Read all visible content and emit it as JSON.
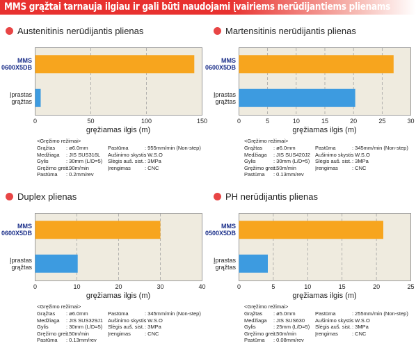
{
  "header": {
    "title": "MMS grąžtai tarnauja ilgiau ir gali būti naudojami įvairiems nerūdijantiems plienams"
  },
  "chart_data": [
    {
      "type": "bar",
      "orientation": "horizontal",
      "title": "Austenitinis nerūdijantis plienas",
      "categories": [
        "MMS 0600X5DB",
        "Įprastas grąžtas"
      ],
      "values": [
        143,
        5
      ],
      "colors": [
        "#f7a51e",
        "#3d9be0"
      ],
      "x_label": "gręžiamas ilgis  (m)",
      "xlim": [
        0,
        150
      ],
      "xticks": [
        0,
        50,
        100,
        150
      ],
      "grid": true,
      "conditions": {
        "title": "<Gręžimo režimai>",
        "left": [
          [
            "Grąžtas",
            ": ø6.0mm"
          ],
          [
            "Medžiaga",
            ": JIS SUS316L"
          ],
          [
            "Gylis",
            ": 30mm (L/D=5)"
          ],
          [
            "Gręžimo greit.",
            ": 90m/min"
          ],
          [
            "Pastūma",
            ": 0.2mm/rev"
          ]
        ],
        "right": [
          [
            "Pastūma",
            ": 955mm/min (Non-step)"
          ],
          [
            "Aušinimo skystis",
            ": W.S.O"
          ],
          [
            "Slėgis auš. sist.",
            ": 3MPa"
          ],
          [
            "Įrengimas",
            ": CNC"
          ]
        ]
      }
    },
    {
      "type": "bar",
      "orientation": "horizontal",
      "title": "Martensitinis nerūdijantis plienas",
      "categories": [
        "MMS 0600X5DB",
        "Įprastas grąžtas"
      ],
      "values": [
        27,
        20.3
      ],
      "colors": [
        "#f7a51e",
        "#3d9be0"
      ],
      "x_label": "gręžiamas ilgis  (m)",
      "xlim": [
        0,
        30
      ],
      "xticks": [
        0,
        5,
        10,
        15,
        20,
        25,
        30
      ],
      "grid": true,
      "conditions": {
        "title": "<Gręžimo režimai>",
        "left": [
          [
            "Grąžtas",
            ": ø6.0mm"
          ],
          [
            "Medžiaga",
            ": JIS SUS420J2"
          ],
          [
            "Gylis",
            ": 30mm (L/D=5)"
          ],
          [
            "Gręžimo greit.",
            ": 50m/min"
          ],
          [
            "Pastūma",
            ": 0.13mm/rev"
          ]
        ],
        "right": [
          [
            "Pastūma",
            ": 345mm/min (Non-step)"
          ],
          [
            "Aušinimo skystis",
            ": W.S.O"
          ],
          [
            "Slėgis auš. sist.",
            ": 3MPa"
          ],
          [
            "Įrengimas",
            ": CNC"
          ]
        ]
      }
    },
    {
      "type": "bar",
      "orientation": "horizontal",
      "title": "Duplex plienas",
      "categories": [
        "MMS 0600X5DB",
        "Įprastas grąžtas"
      ],
      "values": [
        30,
        10.2
      ],
      "colors": [
        "#f7a51e",
        "#3d9be0"
      ],
      "x_label": "gręžiamas ilgis  (m)",
      "xlim": [
        0,
        40
      ],
      "xticks": [
        0,
        10,
        20,
        30,
        40
      ],
      "grid": true,
      "conditions": {
        "title": "<Gręžimo režimai>",
        "left": [
          [
            "Grąžtas",
            ": ø6.0mm"
          ],
          [
            "Medžiaga",
            ": JIS SUS329J1"
          ],
          [
            "Gylis",
            ": 30mm (L/D=5)"
          ],
          [
            "Gręžimo greit.",
            ": 50m/min"
          ],
          [
            "Pastūma",
            ": 0.13mm/rev"
          ]
        ],
        "right": [
          [
            "Pastūma",
            ": 345mm/min (Non-step)"
          ],
          [
            "Aušinimo skystis",
            ": W.S.O"
          ],
          [
            "Slėgis auš. sist.",
            ": 3MPa"
          ],
          [
            "Įrengimas",
            ": CNC"
          ]
        ]
      }
    },
    {
      "type": "bar",
      "orientation": "horizontal",
      "title": "PH nerūdijantis plienas",
      "categories": [
        "MMS 0500X5DB",
        "Įprastas grąžtas"
      ],
      "values": [
        21,
        4.2
      ],
      "colors": [
        "#f7a51e",
        "#3d9be0"
      ],
      "x_label": "gręžiamas ilgis  (m)",
      "xlim": [
        0,
        25
      ],
      "xticks": [
        0,
        5,
        10,
        15,
        20,
        25
      ],
      "grid": true,
      "conditions": {
        "title": "<Gręžimo režimai>",
        "left": [
          [
            "Grąžtas",
            ": ø5.0mm"
          ],
          [
            "Medžiaga",
            ": JIS SUS630"
          ],
          [
            "Gylis",
            ": 25mm (L/D=5)"
          ],
          [
            "Gręžimo greit.",
            ": 50m/min"
          ],
          [
            "Pastūma",
            ": 0.08mm/rev"
          ]
        ],
        "right": [
          [
            "Pastūma",
            ": 255mm/min (Non-step)"
          ],
          [
            "Aušinimo skystis",
            ": W.S.O"
          ],
          [
            "Slėgis auš. sist.",
            ": 3MPa"
          ],
          [
            "Įrengimas",
            ": CNC"
          ]
        ]
      }
    }
  ]
}
